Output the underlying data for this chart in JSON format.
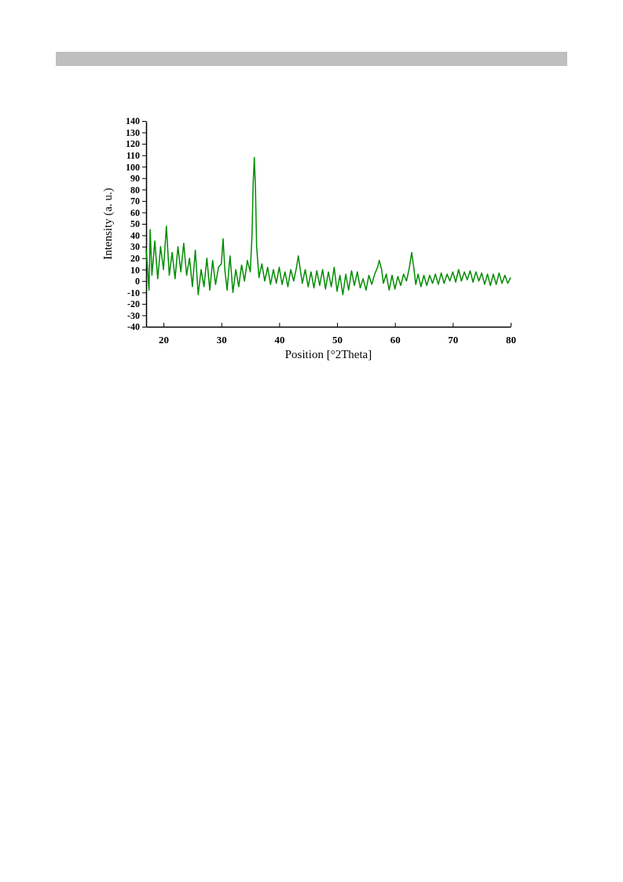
{
  "chart_data": {
    "type": "line",
    "xlabel": "Position [°2Theta]",
    "ylabel": "Intensity (a. u.)",
    "xlim": [
      17,
      80
    ],
    "xticks": [
      20,
      30,
      40,
      50,
      60,
      70,
      80
    ],
    "ylim": [
      -40,
      140
    ],
    "yticks": [
      -40,
      -30,
      -20,
      -10,
      0,
      10,
      20,
      30,
      40,
      50,
      60,
      70,
      80,
      90,
      100,
      110,
      120,
      130,
      140
    ],
    "grid": false,
    "marker": "none",
    "line_style": "solid",
    "series": [
      {
        "color": "#008c00",
        "x": [
          17,
          17.5,
          17.7,
          18,
          18.5,
          19,
          19.5,
          20,
          20.5,
          21,
          21.5,
          22,
          22.5,
          23,
          23.5,
          24,
          24.5,
          25,
          25.5,
          26,
          26.5,
          27,
          27.5,
          28,
          28.5,
          29,
          29.5,
          30,
          30.3,
          30.6,
          31,
          31.5,
          32,
          32.5,
          33,
          33.5,
          34,
          34.5,
          35,
          35.3,
          35.5,
          35.7,
          35.9,
          36.1,
          36.5,
          37,
          37.5,
          38,
          38.5,
          39,
          39.5,
          40,
          40.5,
          41,
          41.5,
          42,
          42.5,
          43,
          43.3,
          43.7,
          44,
          44.5,
          45,
          45.5,
          46,
          46.5,
          47,
          47.5,
          48,
          48.5,
          49,
          49.5,
          50,
          50.5,
          51,
          51.5,
          52,
          52.5,
          53,
          53.5,
          54,
          54.5,
          55,
          55.5,
          56,
          56.5,
          57,
          57.3,
          57.7,
          58,
          58.5,
          59,
          59.5,
          60,
          60.5,
          61,
          61.5,
          62,
          62.5,
          62.9,
          63.3,
          63.6,
          64,
          64.5,
          65,
          65.5,
          66,
          66.5,
          67,
          67.5,
          68,
          68.5,
          69,
          69.5,
          70,
          70.5,
          71,
          71.5,
          72,
          72.5,
          73,
          73.5,
          74,
          74.5,
          75,
          75.5,
          76,
          76.5,
          77,
          77.5,
          78,
          78.5,
          79,
          79.5,
          80
        ],
        "values": [
          28,
          -8,
          45,
          5,
          35,
          2,
          30,
          10,
          48,
          5,
          25,
          2,
          30,
          8,
          33,
          5,
          20,
          -5,
          27,
          -12,
          10,
          -5,
          20,
          -8,
          18,
          -3,
          12,
          15,
          37,
          10,
          -8,
          22,
          -10,
          10,
          -5,
          14,
          0,
          18,
          8,
          40,
          85,
          108,
          80,
          30,
          3,
          15,
          0,
          12,
          -3,
          10,
          -2,
          12,
          -3,
          8,
          -5,
          10,
          0,
          12,
          22,
          8,
          -2,
          10,
          -5,
          8,
          -6,
          9,
          -4,
          10,
          -7,
          8,
          -5,
          12,
          -9,
          5,
          -12,
          6,
          -8,
          9,
          -4,
          8,
          -6,
          2,
          -8,
          5,
          -3,
          6,
          12,
          18,
          10,
          -2,
          6,
          -8,
          5,
          -7,
          4,
          -4,
          6,
          0,
          12,
          25,
          10,
          -3,
          6,
          -5,
          5,
          -4,
          5,
          -2,
          6,
          -3,
          7,
          -2,
          6,
          0,
          8,
          -1,
          10,
          0,
          8,
          1,
          9,
          -1,
          8,
          0,
          7,
          -3,
          6,
          -4,
          6,
          -3,
          7,
          -2,
          5,
          -2,
          3
        ]
      }
    ]
  }
}
